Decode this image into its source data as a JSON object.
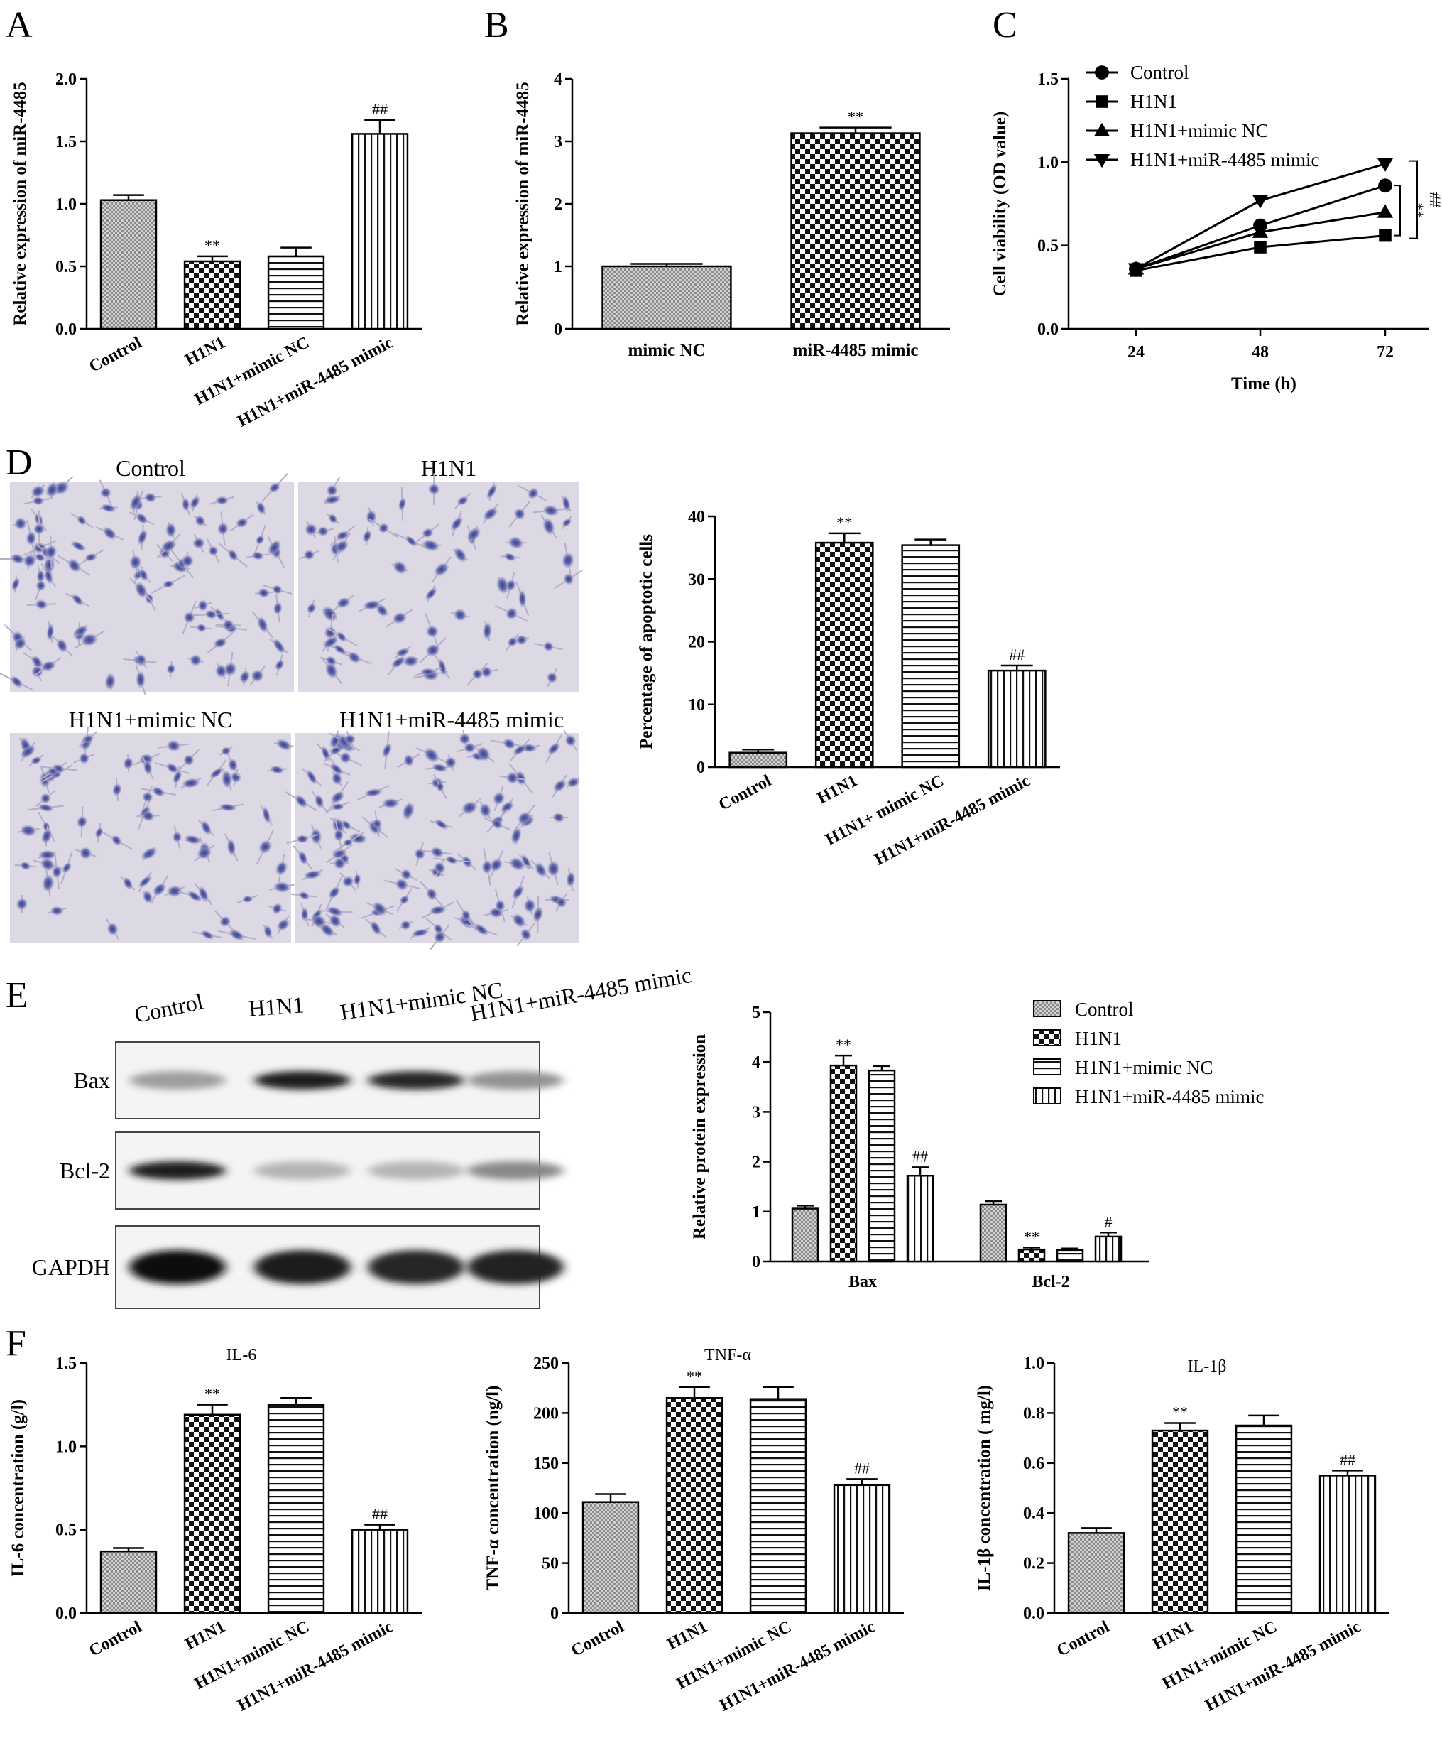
{
  "panels": {
    "A": {
      "letter": "A",
      "chart_data": {
        "type": "bar",
        "categories": [
          "Control",
          "H1N1",
          "H1N1+mimic NC",
          "H1N1+miR-4485 mimic"
        ],
        "values": [
          1.03,
          0.54,
          0.58,
          1.56
        ],
        "errors": [
          0.04,
          0.04,
          0.07,
          0.11
        ],
        "annotations": [
          "",
          "**",
          "",
          "##"
        ],
        "ylabel": "Relative expression of miR-4485",
        "ylim": [
          0,
          2.0
        ],
        "yticks": [
          "0.0",
          "0.5",
          "1.0",
          "1.5",
          "2.0"
        ]
      }
    },
    "B": {
      "letter": "B",
      "chart_data": {
        "type": "bar",
        "categories": [
          "mimic NC",
          "miR-4485 mimic"
        ],
        "values": [
          1.0,
          3.13
        ],
        "errors": [
          0.04,
          0.09
        ],
        "annotations": [
          "",
          "**"
        ],
        "ylabel": "Relative expression of miR-4485",
        "ylim": [
          0,
          4
        ],
        "yticks": [
          "0",
          "1",
          "2",
          "3",
          "4"
        ]
      }
    },
    "C": {
      "letter": "C",
      "chart_data": {
        "type": "line",
        "x": [
          "24",
          "48",
          "72"
        ],
        "series": [
          {
            "name": "Control",
            "values": [
              0.36,
              0.62,
              0.86
            ],
            "marker": "circle"
          },
          {
            "name": "H1N1",
            "values": [
              0.35,
              0.49,
              0.56
            ],
            "marker": "square"
          },
          {
            "name": "H1N1+mimic NC",
            "values": [
              0.36,
              0.58,
              0.7
            ],
            "marker": "triangle-up"
          },
          {
            "name": "H1N1+miR-4485 mimic",
            "values": [
              0.36,
              0.77,
              0.99
            ],
            "marker": "triangle-down"
          }
        ],
        "annotations": [
          "**",
          "##"
        ],
        "xlabel": "Time (h)",
        "ylabel": "Cell viability (OD value)",
        "ylim": [
          0,
          1.5
        ],
        "yticks": [
          "0.0",
          "0.5",
          "1.0",
          "1.5"
        ],
        "legend": "top-right"
      }
    },
    "D": {
      "letter": "D",
      "micrograph_labels": [
        "Control",
        "H1N1",
        "H1N1+mimic NC",
        "H1N1+miR-4485 mimic"
      ],
      "chart_data": {
        "type": "bar",
        "categories": [
          "Control",
          "H1N1",
          "H1N1+ mimic NC",
          "H1N1+miR-4485 mimic"
        ],
        "values": [
          2.3,
          35.8,
          35.4,
          15.4
        ],
        "errors": [
          0.5,
          1.5,
          0.9,
          0.8
        ],
        "annotations": [
          "",
          "**",
          "",
          "##"
        ],
        "ylabel": "Percentage of apoptotic cells",
        "ylim": [
          0,
          40
        ],
        "yticks": [
          "0",
          "10",
          "20",
          "30",
          "40"
        ]
      }
    },
    "E": {
      "letter": "E",
      "blot_lanes": [
        "Control",
        "H1N1",
        "H1N1+mimic NC",
        "H1N1+miR-4485 mimic"
      ],
      "blot_proteins": [
        "Bax",
        "Bcl-2",
        "GAPDH"
      ],
      "blot_intensity": [
        [
          0.35,
          0.95,
          0.9,
          0.4
        ],
        [
          0.95,
          0.25,
          0.25,
          0.45
        ],
        [
          1.0,
          0.95,
          0.9,
          0.92
        ]
      ],
      "chart_data": {
        "type": "bar",
        "categories": [
          "Bax",
          "Bcl-2"
        ],
        "series": [
          {
            "name": "Control",
            "values": [
              1.06,
              1.14
            ],
            "errors": [
              0.06,
              0.07
            ],
            "annotations": [
              "",
              ""
            ]
          },
          {
            "name": "H1N1",
            "values": [
              3.93,
              0.24
            ],
            "errors": [
              0.2,
              0.04
            ],
            "annotations": [
              "**",
              "**"
            ]
          },
          {
            "name": "H1N1+mimic NC",
            "values": [
              3.83,
              0.23
            ],
            "errors": [
              0.09,
              0.03
            ],
            "annotations": [
              "",
              ""
            ]
          },
          {
            "name": "H1N1+miR-4485 mimic",
            "values": [
              1.72,
              0.5
            ],
            "errors": [
              0.17,
              0.08
            ],
            "annotations": [
              "##",
              "#"
            ]
          }
        ],
        "ylabel": "Relative protein expression",
        "ylim": [
          0,
          5
        ],
        "yticks": [
          "0",
          "1",
          "2",
          "3",
          "4",
          "5"
        ],
        "legend": "top-right"
      }
    },
    "F": {
      "letter": "F",
      "chart_data": [
        {
          "type": "bar",
          "title": "IL-6",
          "categories": [
            "Control",
            "H1N1",
            "H1N1+mimic NC",
            "H1N1+miR-4485 mimic"
          ],
          "values": [
            0.37,
            1.19,
            1.25,
            0.5
          ],
          "errors": [
            0.02,
            0.06,
            0.04,
            0.03
          ],
          "annotations": [
            "",
            "**",
            "",
            "##"
          ],
          "ylabel": "IL-6 concentration (g/l)",
          "ylim": [
            0,
            1.5
          ],
          "yticks": [
            "0.0",
            "0.5",
            "1.0",
            "1.5"
          ]
        },
        {
          "type": "bar",
          "title": "TNF-α",
          "categories": [
            "Control",
            "H1N1",
            "H1N1+mimic NC",
            "H1N1+miR-4485 mimic"
          ],
          "values": [
            111,
            215,
            214,
            128
          ],
          "errors": [
            8,
            11,
            12,
            6
          ],
          "annotations": [
            "",
            "**",
            "",
            "##"
          ],
          "ylabel": "TNF-α concentration (ng/l)",
          "ylim": [
            0,
            250
          ],
          "yticks": [
            "0",
            "50",
            "100",
            "150",
            "200",
            "250"
          ]
        },
        {
          "type": "bar",
          "title": "IL-1β",
          "categories": [
            "Control",
            "H1N1",
            "H1N1+mimic NC",
            "H1N1+miR-4485 mimic"
          ],
          "values": [
            0.32,
            0.73,
            0.75,
            0.55
          ],
          "errors": [
            0.02,
            0.03,
            0.04,
            0.02
          ],
          "annotations": [
            "",
            "**",
            "",
            "##"
          ],
          "ylabel": "IL-1β concentration ( mg/l)",
          "ylim": [
            0,
            1.0
          ],
          "yticks": [
            "0.0",
            "0.2",
            "0.4",
            "0.6",
            "0.8",
            "1.0"
          ]
        }
      ]
    }
  }
}
